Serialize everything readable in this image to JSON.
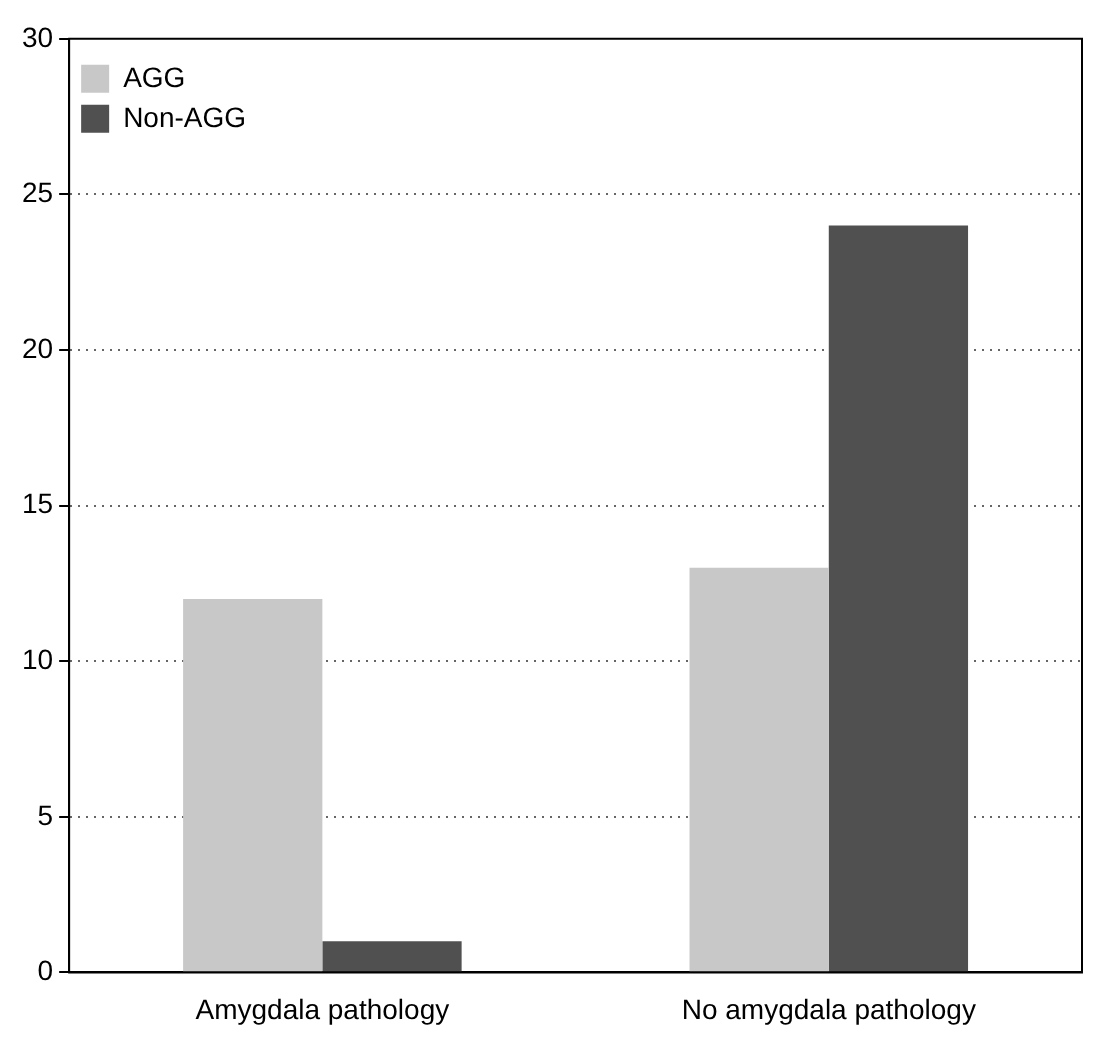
{
  "chart_data": {
    "type": "bar",
    "categories": [
      "Amygdala pathology",
      "No amygdala pathology"
    ],
    "series": [
      {
        "name": "AGG",
        "color": "#c8c8c8",
        "values": [
          12,
          13
        ]
      },
      {
        "name": "Non-AGG",
        "color": "#505050",
        "values": [
          1,
          24
        ]
      }
    ],
    "ylim": [
      0,
      30
    ],
    "yticks": [
      0,
      5,
      10,
      15,
      20,
      25,
      30
    ],
    "grid": "y",
    "legend": "top left"
  }
}
